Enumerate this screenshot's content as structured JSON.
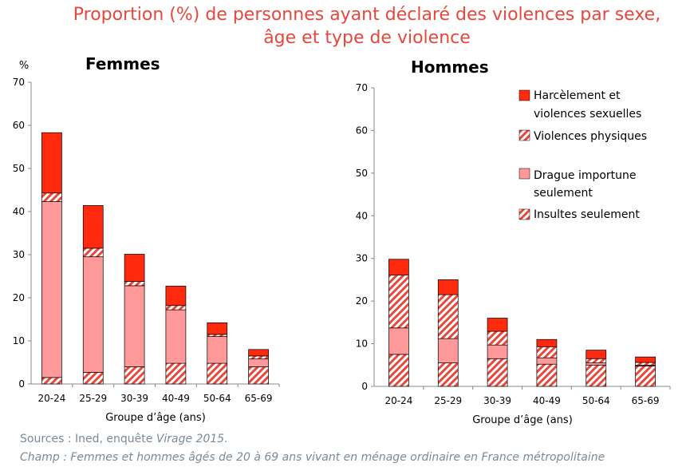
{
  "title": {
    "line1": "Proportion (%) de personnes ayant déclaré des violences par sexe,",
    "line2": "âge et type de violence"
  },
  "colors": {
    "title": "#e8473c",
    "harcelement": "#ff2a0e",
    "physiques": "#e8473c",
    "drague": "#ff9999",
    "insultes": "#e8473c",
    "footer": "#7a8a99"
  },
  "chart_data": [
    {
      "type": "bar",
      "stacked": true,
      "title": "Femmes",
      "ylabel_unit": "%",
      "xlabel": "Groupe d’âge (ans)",
      "ylim": [
        0,
        70
      ],
      "yticks": [
        0,
        10,
        20,
        30,
        40,
        50,
        60,
        70
      ],
      "categories": [
        "20-24",
        "25-29",
        "30-39",
        "40-49",
        "50-64",
        "65-69"
      ],
      "series": [
        {
          "name": "Insultes seulement",
          "key": "insultes",
          "values": [
            1.5,
            2.7,
            4.0,
            4.8,
            4.8,
            4.0
          ]
        },
        {
          "name": "Drague importune seulement",
          "key": "drague",
          "values": [
            40.8,
            26.8,
            18.8,
            12.4,
            6.2,
            1.8
          ]
        },
        {
          "name": "Violences physiques",
          "key": "physiques",
          "values": [
            2.0,
            2.0,
            1.0,
            1.0,
            0.5,
            0.7
          ]
        },
        {
          "name": "Harcèlement et violences sexuelles",
          "key": "harcelement",
          "values": [
            14.0,
            9.9,
            6.3,
            4.5,
            2.7,
            1.5
          ]
        }
      ]
    },
    {
      "type": "bar",
      "stacked": true,
      "title": "Hommes",
      "xlabel": "Groupe d’âge (ans)",
      "ylim": [
        0,
        70
      ],
      "yticks": [
        0,
        10,
        20,
        30,
        40,
        50,
        60,
        70
      ],
      "categories": [
        "20-24",
        "25-29",
        "30-39",
        "40-49",
        "50-64",
        "65-69"
      ],
      "series": [
        {
          "name": "Insultes seulement",
          "key": "insultes",
          "values": [
            7.5,
            5.5,
            6.5,
            5.2,
            5.0,
            4.8
          ]
        },
        {
          "name": "Drague importune seulement",
          "key": "drague",
          "values": [
            6.2,
            5.7,
            3.2,
            1.5,
            0.5,
            0.2
          ]
        },
        {
          "name": "Violences physiques",
          "key": "physiques",
          "values": [
            12.4,
            10.3,
            3.2,
            2.6,
            1.0,
            0.6
          ]
        },
        {
          "name": "Harcèlement et violences sexuelles",
          "key": "harcelement",
          "values": [
            3.7,
            3.5,
            3.1,
            1.7,
            2.0,
            1.3
          ]
        }
      ]
    }
  ],
  "legend": [
    {
      "key": "harcelement",
      "line1": "Harcèlement et",
      "line2": "violences sexuelles"
    },
    {
      "key": "physiques",
      "line1": "Violences physiques",
      "line2": ""
    },
    {
      "key": "drague",
      "line1": "Drague importune",
      "line2": "seulement"
    },
    {
      "key": "insultes",
      "line1": "Insultes seulement",
      "line2": ""
    }
  ],
  "footer": {
    "sources_prefix": "Sources : Ined, enquête ",
    "sources_italic": "Virage 2015.",
    "champ": "Champ : Femmes et hommes âgés de 20 à 69 ans vivant en ménage ordinaire en France métropolitaine"
  }
}
